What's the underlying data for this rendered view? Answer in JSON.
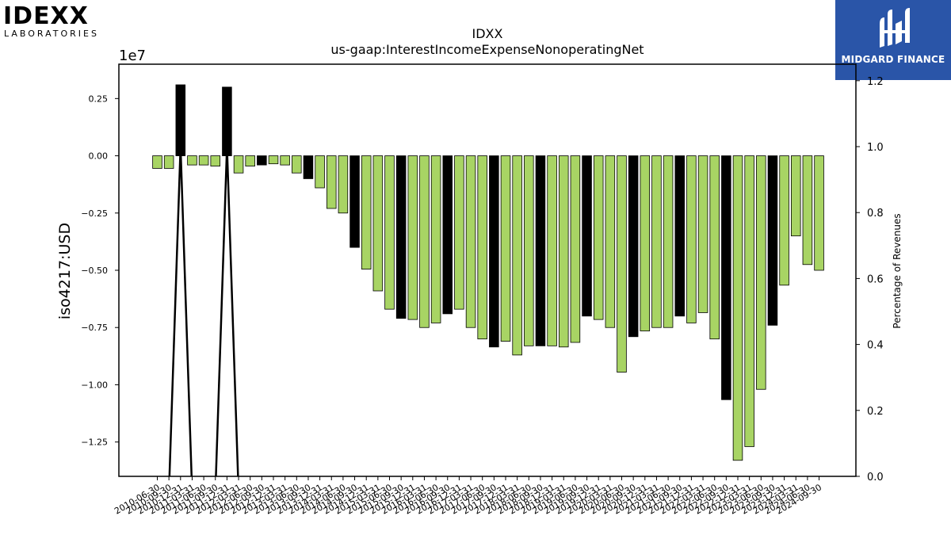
{
  "brand": {
    "company_logo_text": "IDEXX",
    "company_logo_sub": "LABORATORIES",
    "watermark_text": "MIDGARD FINANCE"
  },
  "chart_data": {
    "type": "bar",
    "title": "IDXX",
    "subtitle": "us-gaap:InterestIncomeExpenseNonoperatingNet",
    "ylabel": "iso4217:USD",
    "y_offset_label": "1e7",
    "y2label": "Percentage of Revenues",
    "ylim": [
      -14000000,
      4000000
    ],
    "y2lim": [
      0.0,
      1.25
    ],
    "yticks": [
      {
        "value": 2500000,
        "label": "0.25"
      },
      {
        "value": 0,
        "label": "0.00"
      },
      {
        "value": -2500000,
        "label": "−0.25"
      },
      {
        "value": -5000000,
        "label": "−0.50"
      },
      {
        "value": -7500000,
        "label": "−0.75"
      },
      {
        "value": -10000000,
        "label": "−1.00"
      },
      {
        "value": -12500000,
        "label": "−1.25"
      }
    ],
    "y2ticks": [
      {
        "value": 0.0,
        "label": "0.0"
      },
      {
        "value": 0.2,
        "label": "0.2"
      },
      {
        "value": 0.4,
        "label": "0.4"
      },
      {
        "value": 0.6,
        "label": "0.6"
      },
      {
        "value": 0.8,
        "label": "0.8"
      },
      {
        "value": 1.0,
        "label": "1.0"
      },
      {
        "value": 1.2,
        "label": "1.2"
      }
    ],
    "colors": {
      "quarterly": "#a8d464",
      "annual": "#000000",
      "edge": "#000000",
      "line": "#000000"
    },
    "categories": [
      "2010-06-30",
      "2010-09-30",
      "2010-12-31",
      "2011-03-31",
      "2011-06-30",
      "2011-09-30",
      "2011-12-31",
      "2012-03-31",
      "2012-06-30",
      "2012-09-30",
      "2012-12-31",
      "2013-03-31",
      "2013-06-30",
      "2013-09-30",
      "2013-12-31",
      "2014-03-31",
      "2014-06-30",
      "2014-09-30",
      "2014-12-31",
      "2015-03-31",
      "2015-06-30",
      "2015-09-30",
      "2015-12-31",
      "2016-03-31",
      "2016-06-30",
      "2016-09-30",
      "2016-12-31",
      "2017-03-31",
      "2017-06-30",
      "2017-09-30",
      "2017-12-31",
      "2018-03-31",
      "2018-06-30",
      "2018-09-30",
      "2018-12-31",
      "2019-03-31",
      "2019-06-30",
      "2019-09-30",
      "2019-12-31",
      "2020-03-31",
      "2020-06-30",
      "2020-09-30",
      "2020-12-31",
      "2021-03-31",
      "2021-06-30",
      "2021-09-30",
      "2021-12-31",
      "2022-03-31",
      "2022-06-30",
      "2022-09-30",
      "2022-12-31",
      "2023-03-31",
      "2023-06-30",
      "2023-09-30",
      "2023-12-31",
      "2024-03-31",
      "2024-06-30",
      "2024-09-30"
    ],
    "values": [
      -550000,
      -550000,
      3100000,
      -400000,
      -400000,
      -450000,
      3000000,
      -750000,
      -450000,
      -400000,
      -350000,
      -400000,
      -750000,
      -1000000,
      -1400000,
      -2300000,
      -2500000,
      -4000000,
      -4950000,
      -5900000,
      -6700000,
      -7100000,
      -7150000,
      -7500000,
      -7300000,
      -6900000,
      -6700000,
      -7500000,
      -8000000,
      -8350000,
      -8100000,
      -8700000,
      -8300000,
      -8300000,
      -8300000,
      -8350000,
      -8150000,
      -7000000,
      -7150000,
      -7500000,
      -9450000,
      -7900000,
      -7650000,
      -7500000,
      -7500000,
      -7000000,
      -7300000,
      -6850000,
      -8000000,
      -10650000,
      -13300000,
      -12700000,
      -10200000,
      -7400000,
      -5650000,
      -3500000,
      -4750000,
      -5000000
    ],
    "annual_flags": [
      0,
      0,
      1,
      0,
      0,
      0,
      1,
      0,
      0,
      1,
      0,
      0,
      0,
      1,
      0,
      0,
      0,
      1,
      0,
      0,
      0,
      1,
      0,
      0,
      0,
      1,
      0,
      0,
      0,
      1,
      0,
      0,
      0,
      1,
      0,
      0,
      0,
      1,
      0,
      0,
      0,
      1,
      0,
      0,
      0,
      1,
      0,
      0,
      0,
      1,
      0,
      0,
      0,
      1,
      0,
      0,
      0,
      0
    ],
    "pct_of_revenues_line": [
      {
        "index": 1.0,
        "value": -0.05
      },
      {
        "index": 2.0,
        "value": 1.0
      },
      {
        "index": 3.0,
        "value": -0.05
      },
      {
        "index": 5.0,
        "value": -0.05
      },
      {
        "index": 6.0,
        "value": 1.0
      },
      {
        "index": 7.0,
        "value": -0.05
      }
    ]
  }
}
